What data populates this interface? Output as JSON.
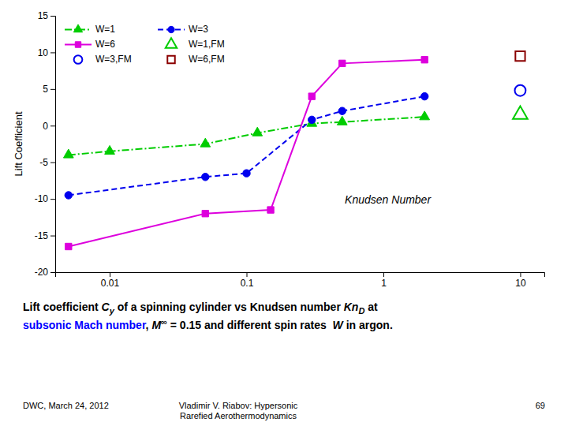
{
  "chart_data": {
    "type": "line",
    "log": "x",
    "xlim": [
      0.004,
      15
    ],
    "xticks": [
      0.01,
      0.1,
      1,
      10
    ],
    "ylim": [
      -20,
      15
    ],
    "yticks": [
      -20,
      -15,
      -10,
      -5,
      0,
      5,
      10,
      15
    ],
    "y_label": "Lift Coefficient",
    "annotations": [
      "Knudsen Number"
    ],
    "grid": false,
    "legend": "upper left",
    "series": [
      {
        "name": "W=1",
        "type": "line",
        "color": "#00cc00",
        "marker": "triangle",
        "line_style": "dashdot",
        "x": [
          0.005,
          0.01,
          0.05,
          0.12,
          0.3,
          0.5,
          2.0
        ],
        "values": [
          -4.0,
          -3.5,
          -2.5,
          -1.0,
          0.3,
          0.5,
          1.2
        ]
      },
      {
        "name": "W=3",
        "type": "line",
        "color": "#0000ee",
        "marker": "circle",
        "line_style": "dashed",
        "x": [
          0.005,
          0.05,
          0.1,
          0.3,
          0.5,
          2.0
        ],
        "values": [
          -9.5,
          -7.0,
          -6.5,
          0.8,
          2.0,
          4.0
        ]
      },
      {
        "name": "W=6",
        "type": "line",
        "color": "#dd00dd",
        "marker": "square",
        "line_style": "solid",
        "x": [
          0.005,
          0.05,
          0.15,
          0.3,
          0.5,
          2.0
        ],
        "values": [
          -16.5,
          -12.0,
          -11.5,
          4.0,
          8.5,
          9.0
        ]
      },
      {
        "name": "W=1,FM",
        "type": "scatter",
        "color": "#00cc00",
        "marker": "triangle-open",
        "line_style": "none",
        "x": [
          10.0
        ],
        "values": [
          1.5
        ]
      },
      {
        "name": "W=3,FM",
        "type": "scatter",
        "color": "#0000ee",
        "marker": "circle-open",
        "line_style": "none",
        "x": [
          10.0
        ],
        "values": [
          4.8
        ]
      },
      {
        "name": "W=6,FM",
        "type": "scatter",
        "color": "#8b0000",
        "marker": "square-open",
        "line_style": "none",
        "x": [
          10.0
        ],
        "values": [
          9.5
        ]
      }
    ],
    "caption": [
      [
        {
          "text": "Lift coefficient "
        },
        {
          "text": "C",
          "style": "italic"
        },
        {
          "text": "y",
          "style": "italic-subscript"
        },
        {
          "text": " of a spinning cylinder vs Knudsen number "
        },
        {
          "text": "Kn",
          "style": "italic"
        },
        {
          "text": "D",
          "style": "italic-subscript"
        },
        {
          "text": " at"
        }
      ],
      [
        {
          "text": "subsonic Mach number",
          "color": "blue"
        },
        {
          "text": ", "
        },
        {
          "text": "M",
          "style": "italic"
        },
        {
          "text": "∞",
          "style": "superscript"
        },
        {
          "text": " = 0.15 and different spin rates  "
        },
        {
          "text": "W",
          "style": "italic"
        },
        {
          "text": " in argon."
        }
      ]
    ],
    "footer": [
      "DWC, March 24, 2012",
      "Vladimir V. Riabov: Hypersonic\nRarefied Aerothermodynamics",
      "69"
    ]
  }
}
